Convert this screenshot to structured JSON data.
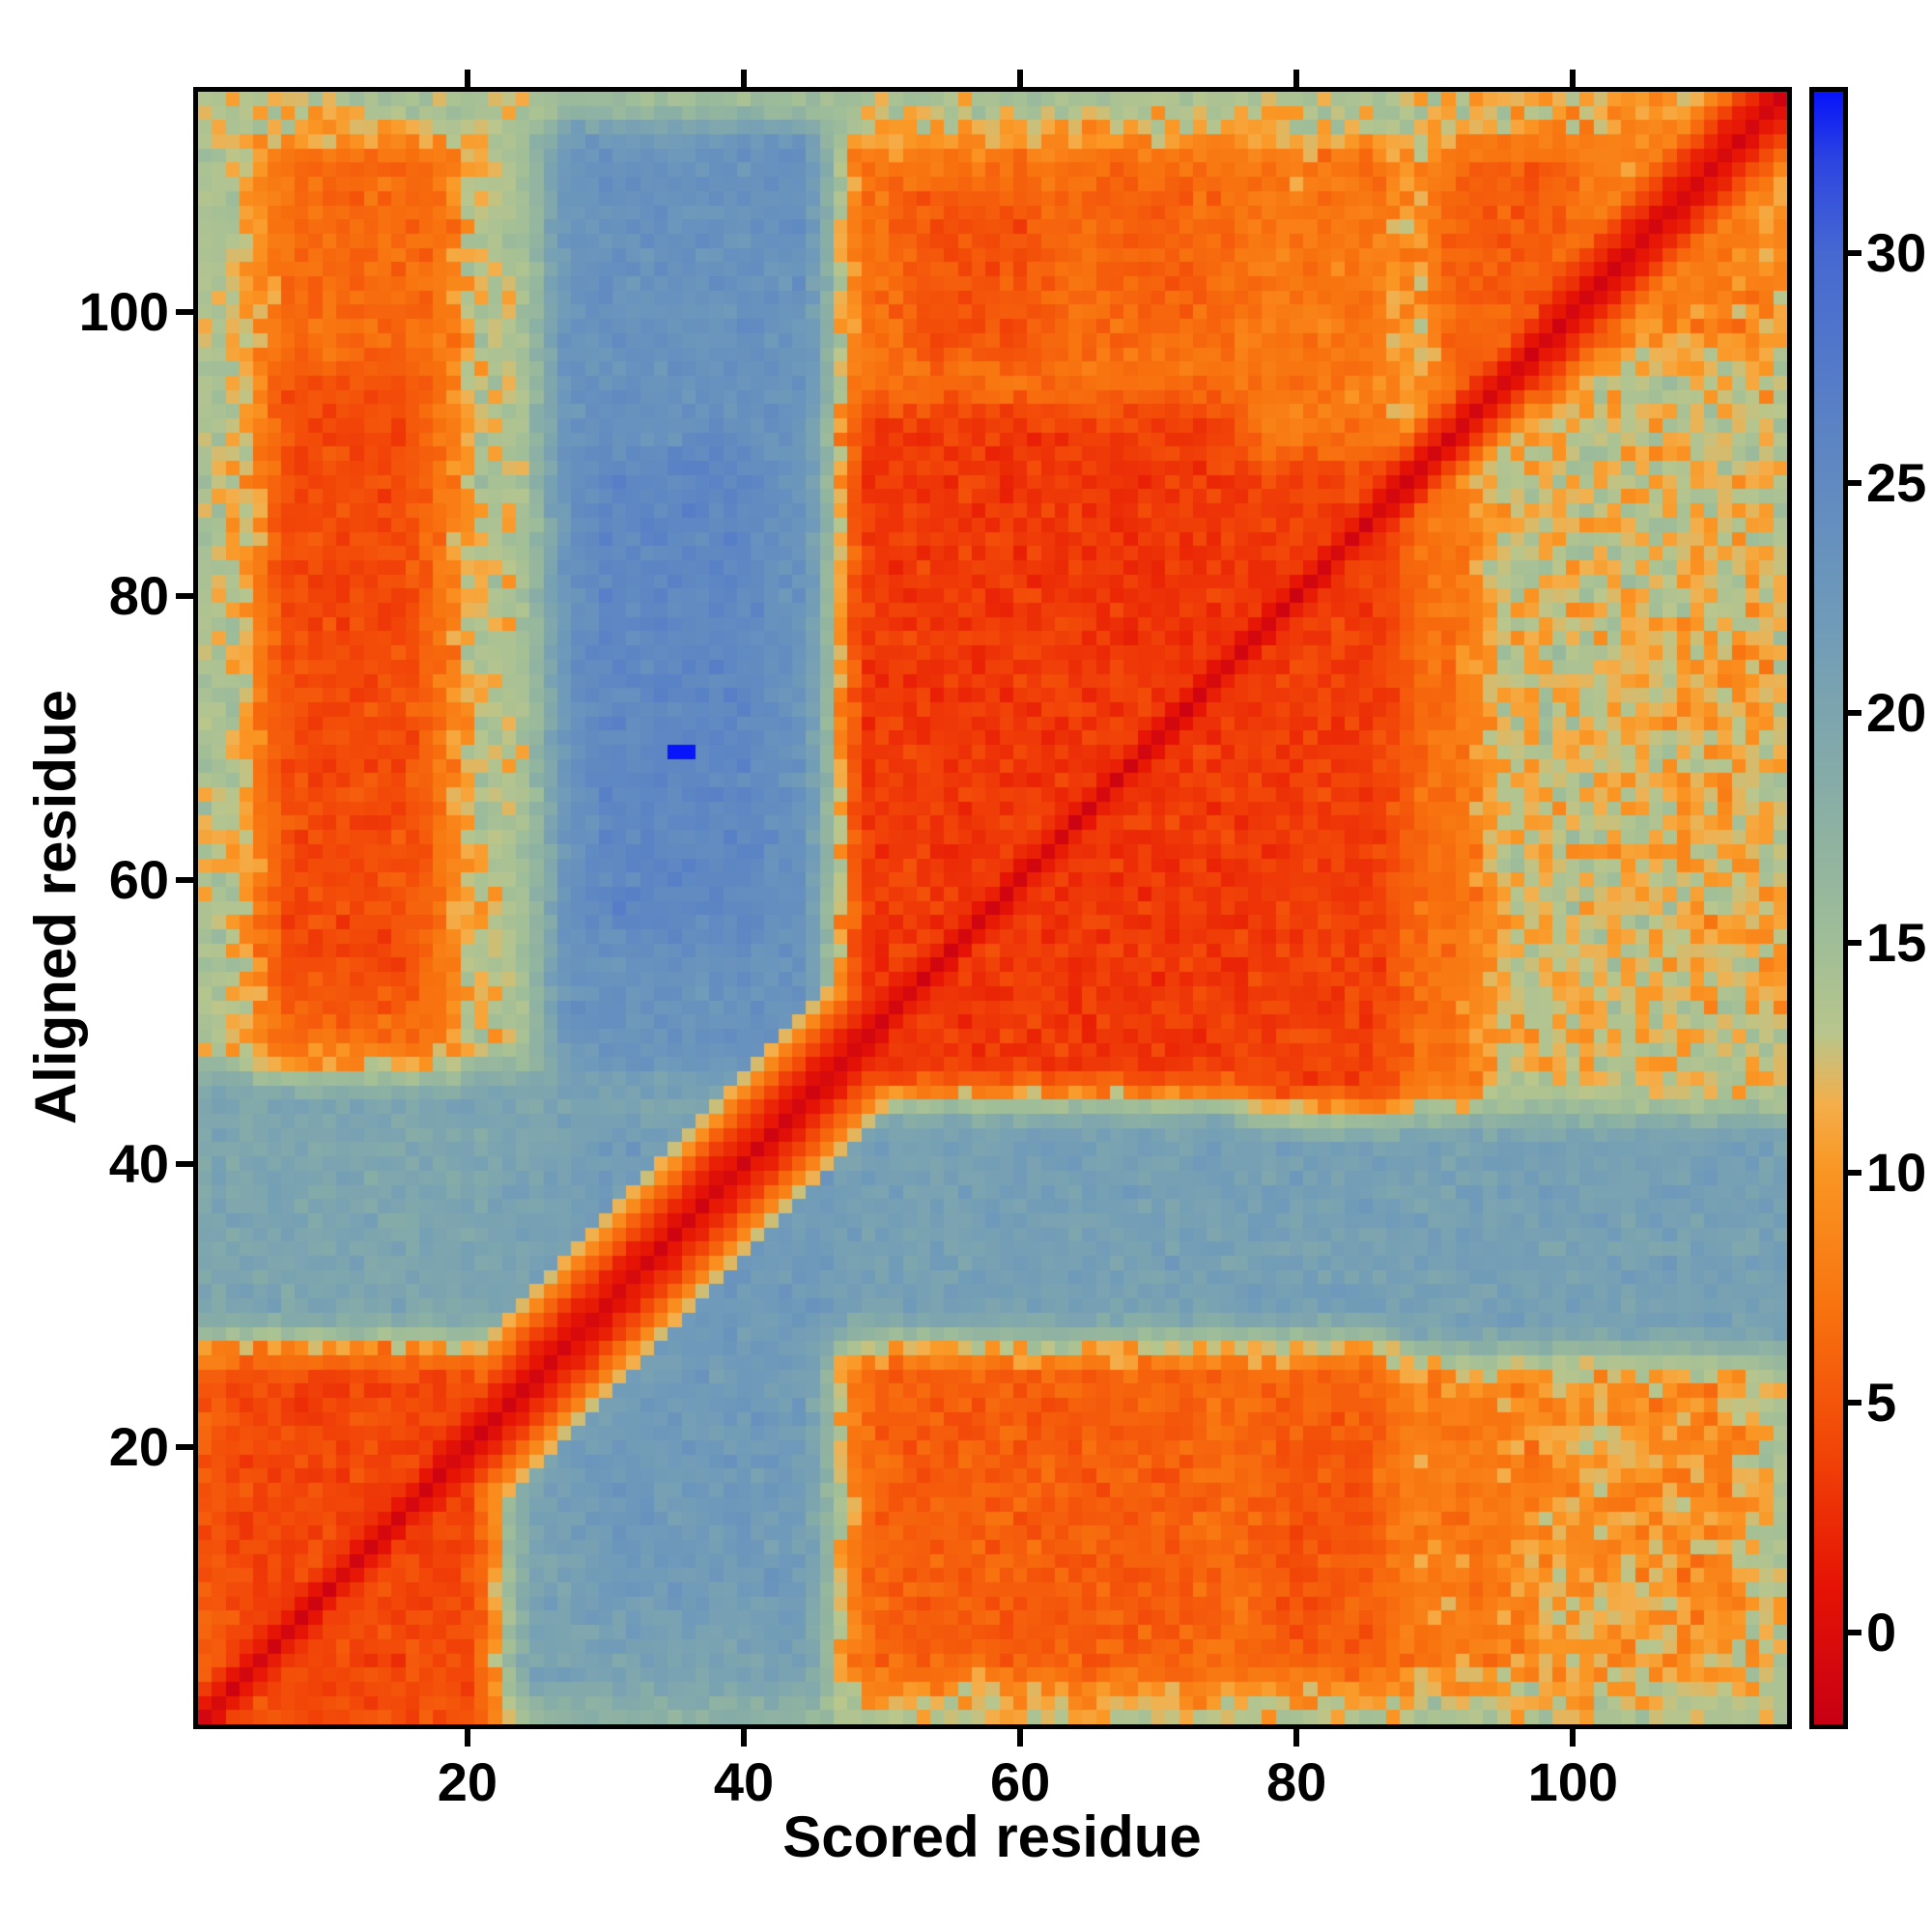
{
  "chart_data": {
    "type": "heatmap",
    "title": "",
    "xlabel": "Scored residue",
    "ylabel": "Aligned residue",
    "n_residues": 115,
    "x_ticks": [
      20,
      40,
      60,
      80,
      100
    ],
    "y_ticks": [
      20,
      40,
      60,
      80,
      100
    ],
    "value_range": [
      -2,
      33.5
    ],
    "background_color": "#ffffff",
    "frame_color": "#000000",
    "colorbar": {
      "position": "right",
      "orientation": "vertical",
      "ticks": [
        0,
        5,
        10,
        15,
        20,
        25,
        30
      ]
    },
    "colormap_stops": [
      [
        -2.0,
        "#c80014"
      ],
      [
        1.0,
        "#e61405"
      ],
      [
        4.0,
        "#f24608"
      ],
      [
        7.0,
        "#f8730f"
      ],
      [
        10.0,
        "#fa9623"
      ],
      [
        11.5,
        "#f4af4b"
      ],
      [
        13.0,
        "#b9c68c"
      ],
      [
        15.0,
        "#a0be98"
      ],
      [
        18.0,
        "#8aafa5"
      ],
      [
        22.0,
        "#709bb9"
      ],
      [
        26.0,
        "#5c85c4"
      ],
      [
        30.0,
        "#4669d2"
      ],
      [
        32.0,
        "#2d46e1"
      ],
      [
        33.5,
        "#0814fa"
      ]
    ],
    "field": {
      "base_value": 14,
      "blur_passes": 2,
      "regions": [
        [
          1,
          24,
          1,
          28,
          5.5
        ],
        [
          3,
          21,
          2,
          25,
          4.0
        ],
        [
          23,
          46,
          2,
          46,
          20.5
        ],
        [
          28,
          46,
          8,
          42,
          22.0
        ],
        [
          1,
          22,
          28,
          46,
          20.0
        ],
        [
          47,
          115,
          27,
          46,
          21.0
        ],
        [
          47,
          76,
          3,
          27,
          7.0
        ],
        [
          50,
          73,
          5,
          25,
          5.5
        ],
        [
          76,
          87,
          3,
          27,
          6.5
        ],
        [
          78,
          85,
          6,
          23,
          5.0
        ],
        [
          88,
          113,
          3,
          26,
          10.5
        ],
        [
          88,
          97,
          5,
          24,
          8.0
        ],
        [
          104,
          112,
          7,
          23,
          9.5
        ],
        [
          1,
          4,
          47,
          115,
          13.5
        ],
        [
          5,
          19,
          47,
          112,
          6.5
        ],
        [
          6,
          16,
          52,
          95,
          4.2
        ],
        [
          20,
          25,
          47,
          115,
          13.5
        ],
        [
          26,
          46,
          47,
          113,
          23.5
        ],
        [
          29,
          41,
          56,
          90,
          25.5
        ],
        [
          47,
          76,
          45,
          93,
          3.2
        ],
        [
          47,
          76,
          94,
          112,
          7.0
        ],
        [
          52,
          62,
          97,
          108,
          4.8
        ],
        [
          65,
          74,
          99,
          110,
          6.0
        ],
        [
          77,
          87,
          44,
          89,
          3.5
        ],
        [
          77,
          87,
          90,
          112,
          7.5
        ],
        [
          88,
          115,
          44,
          115,
          12.5
        ],
        [
          88,
          93,
          45,
          88,
          7.0
        ],
        [
          108,
          114,
          52,
          78,
          11.0
        ],
        [
          90,
          100,
          94,
          112,
          5.5
        ],
        [
          101,
          114,
          98,
          114,
          8.5
        ]
      ],
      "diagonal": {
        "profile_narrow": [
          -1,
          1.2,
          3.2,
          6.0,
          9.5
        ],
        "profile_wide": [
          -1,
          0.8,
          2.2,
          4.0,
          6.2,
          8.8,
          12.0
        ],
        "wide_ranges": [
          [
            18,
            50
          ],
          [
            98,
            115
          ]
        ]
      },
      "outlier": {
        "x": 35,
        "y": 69,
        "width": 2,
        "height": 1,
        "value": 33.5
      },
      "noise": {
        "seed": 11,
        "jitter": 1.7,
        "boundary_band": [
          8.5,
          13.5
        ],
        "boundary_jitter": 6.0
      }
    }
  }
}
